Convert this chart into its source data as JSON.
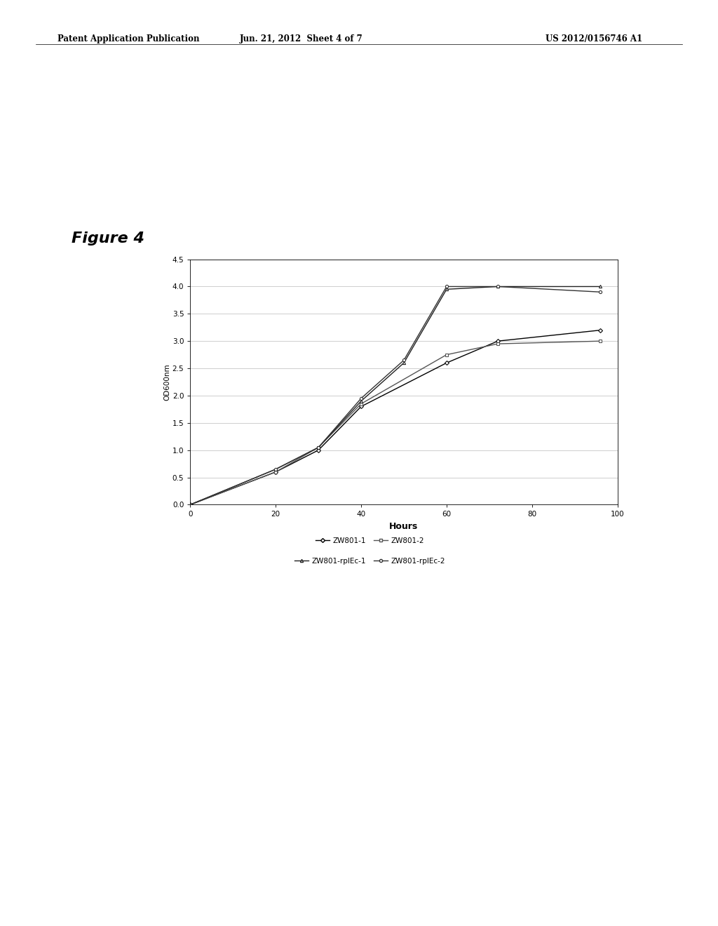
{
  "title": "Figure 4",
  "xlabel": "Hours",
  "ylabel": "OD600nm",
  "xlim": [
    0,
    100
  ],
  "ylim": [
    0.0,
    4.5
  ],
  "xticks": [
    0,
    20,
    40,
    60,
    80,
    100
  ],
  "ytick_labels": [
    "0.0",
    "0.5",
    "1.0",
    "1.5",
    "2.0",
    "2.5",
    "3.0",
    "3.5",
    "4.0",
    "4.5"
  ],
  "series": [
    {
      "label": "ZW801-1",
      "x": [
        0,
        20,
        30,
        40,
        60,
        72,
        96
      ],
      "y": [
        0.0,
        0.6,
        1.0,
        1.8,
        2.6,
        3.0,
        3.2
      ],
      "color": "#000000",
      "marker": "D",
      "linestyle": "-",
      "linewidth": 1.0,
      "markersize": 3
    },
    {
      "label": "ZW801-2",
      "x": [
        0,
        20,
        30,
        40,
        60,
        72,
        96
      ],
      "y": [
        0.0,
        0.6,
        1.05,
        1.85,
        2.75,
        2.95,
        3.0
      ],
      "color": "#555555",
      "marker": "s",
      "linestyle": "-",
      "linewidth": 1.0,
      "markersize": 3
    },
    {
      "label": "ZW801-rplEc-1",
      "x": [
        0,
        20,
        30,
        40,
        50,
        60,
        72,
        96
      ],
      "y": [
        0.0,
        0.65,
        1.05,
        1.9,
        2.6,
        3.95,
        4.0,
        4.0
      ],
      "color": "#222222",
      "marker": "^",
      "linestyle": "-",
      "linewidth": 1.0,
      "markersize": 3
    },
    {
      "label": "ZW801-rplEc-2",
      "x": [
        0,
        20,
        30,
        40,
        50,
        60,
        72,
        96
      ],
      "y": [
        0.0,
        0.65,
        1.05,
        1.95,
        2.65,
        4.0,
        4.0,
        3.9
      ],
      "color": "#333333",
      "marker": "o",
      "linestyle": "-",
      "linewidth": 1.0,
      "markersize": 3
    }
  ],
  "background_color": "#ffffff",
  "grid_color": "#bbbbbb",
  "header_left": "Patent Application Publication",
  "header_mid": "Jun. 21, 2012  Sheet 4 of 7",
  "header_right": "US 2012/0156746 A1"
}
